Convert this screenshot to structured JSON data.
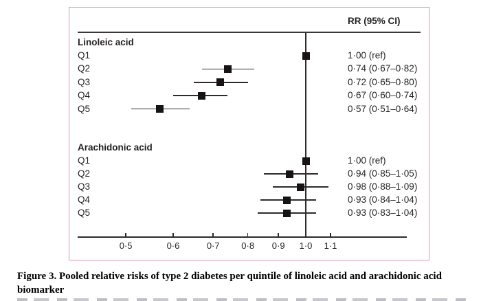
{
  "chart_data": {
    "type": "forest",
    "rr_column_header": "RR (95% CI)",
    "x_scale": "log",
    "x_ticks": [
      0.5,
      0.6,
      0.7,
      0.8,
      0.9,
      1.0,
      1.1
    ],
    "x_tick_labels": [
      "0·5",
      "0·6",
      "0·7",
      "0·8",
      "0·9",
      "1·0",
      "1·1"
    ],
    "x_range": [
      0.42,
      1.48
    ],
    "reference_value": 1.0,
    "groups": [
      {
        "label": "Linoleic acid",
        "rows": [
          {
            "label": "Q1",
            "rr": 1.0,
            "ci_low": null,
            "ci_high": null,
            "rr_text": "1·00 (ref)"
          },
          {
            "label": "Q2",
            "rr": 0.74,
            "ci_low": 0.67,
            "ci_high": 0.82,
            "rr_text": "0·74 (0·67–0·82)"
          },
          {
            "label": "Q3",
            "rr": 0.72,
            "ci_low": 0.65,
            "ci_high": 0.8,
            "rr_text": "0·72 (0·65–0·80)"
          },
          {
            "label": "Q4",
            "rr": 0.67,
            "ci_low": 0.6,
            "ci_high": 0.74,
            "rr_text": "0·67 (0·60–0·74)"
          },
          {
            "label": "Q5",
            "rr": 0.57,
            "ci_low": 0.51,
            "ci_high": 0.64,
            "rr_text": "0·57 (0·51–0·64)"
          }
        ]
      },
      {
        "label": "Arachidonic acid",
        "rows": [
          {
            "label": "Q1",
            "rr": 1.0,
            "ci_low": null,
            "ci_high": null,
            "rr_text": "1·00 (ref)"
          },
          {
            "label": "Q2",
            "rr": 0.94,
            "ci_low": 0.85,
            "ci_high": 1.05,
            "rr_text": "0·94 (0·85–1·05)"
          },
          {
            "label": "Q3",
            "rr": 0.98,
            "ci_low": 0.88,
            "ci_high": 1.09,
            "rr_text": "0·98 (0·88–1·09)"
          },
          {
            "label": "Q4",
            "rr": 0.93,
            "ci_low": 0.84,
            "ci_high": 1.04,
            "rr_text": "0·93 (0·84–1·04)"
          },
          {
            "label": "Q5",
            "rr": 0.93,
            "ci_low": 0.83,
            "ci_high": 1.04,
            "rr_text": "0·93 (0·83–1·04)"
          }
        ]
      }
    ]
  },
  "caption": {
    "line1": "Figure 3. Pooled relative risks of type 2 diabetes per quintile of linoleic acid and arachidonic acid",
    "line2": "biomarker"
  },
  "colors": {
    "border_pink": "#df92a2",
    "ink": "#231f20",
    "marker": "#171213"
  }
}
